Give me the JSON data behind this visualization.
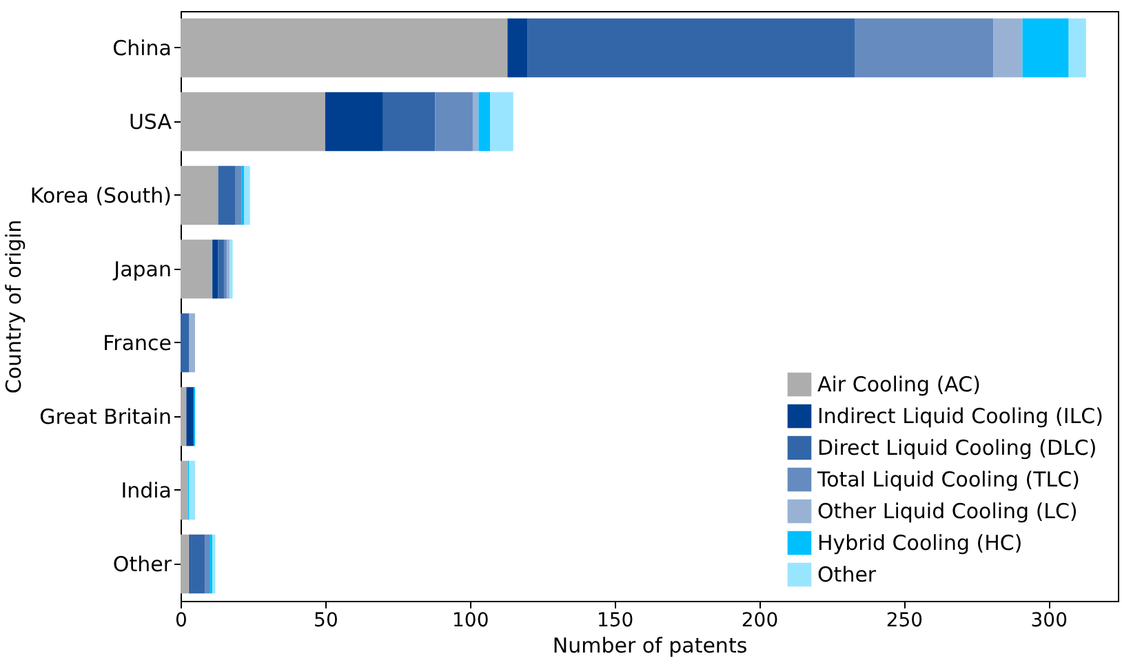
{
  "chart_data": {
    "type": "bar",
    "orientation": "horizontal",
    "stacked": true,
    "xlabel": "Number of patents",
    "ylabel": "Country of origin",
    "categories": [
      "China",
      "USA",
      "Korea (South)",
      "Japan",
      "France",
      "Great Britain",
      "India",
      "Other"
    ],
    "xlim": [
      0,
      324
    ],
    "xticks": [
      0,
      50,
      100,
      150,
      200,
      250,
      300
    ],
    "legend": "bottom right",
    "series": [
      {
        "name": "Air Cooling (AC)",
        "color": "#adadad",
        "values": [
          113,
          50,
          13,
          11,
          null,
          2,
          2.5,
          3
        ]
      },
      {
        "name": "Indirect Liquid Cooling (ILC)",
        "color": "#003f8f",
        "values": [
          7,
          20,
          0,
          2,
          0,
          2.5,
          0,
          0.5
        ]
      },
      {
        "name": "Direct Liquid Cooling (DLC)",
        "color": "#3366a8",
        "values": [
          113,
          18,
          6,
          2,
          3,
          0,
          0,
          5
        ]
      },
      {
        "name": "Total Liquid Cooling (TLC)",
        "color": "#668bbf",
        "values": [
          48,
          13,
          2,
          1,
          0,
          0,
          0,
          1.5
        ]
      },
      {
        "name": "Other Liquid Cooling (LC)",
        "color": "#99b2d4",
        "values": [
          10,
          2,
          0,
          1,
          2,
          0,
          0,
          0
        ]
      },
      {
        "name": "Hybrid Cooling (HC)",
        "color": "#00bfff",
        "values": [
          16,
          4,
          1,
          0,
          0,
          0.5,
          0.5,
          1
        ]
      },
      {
        "name": "Other",
        "color": "#99e5ff",
        "values": [
          6,
          8,
          2,
          1,
          0,
          0,
          2,
          1
        ]
      }
    ]
  }
}
